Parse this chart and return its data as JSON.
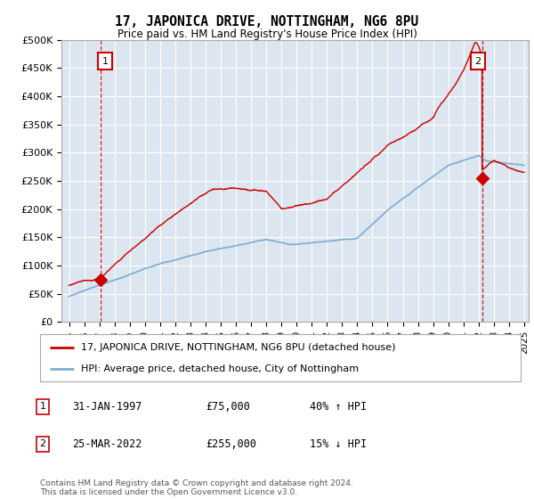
{
  "title": "17, JAPONICA DRIVE, NOTTINGHAM, NG6 8PU",
  "subtitle": "Price paid vs. HM Land Registry's House Price Index (HPI)",
  "bg_color": "#dce6f0",
  "plot_bg_color": "#dce6f0",
  "red_line_label": "17, JAPONICA DRIVE, NOTTINGHAM, NG6 8PU (detached house)",
  "blue_line_label": "HPI: Average price, detached house, City of Nottingham",
  "annotation1_date": "31-JAN-1997",
  "annotation1_price": "£75,000",
  "annotation1_hpi": "40% ↑ HPI",
  "annotation2_date": "25-MAR-2022",
  "annotation2_price": "£255,000",
  "annotation2_hpi": "15% ↓ HPI",
  "footer": "Contains HM Land Registry data © Crown copyright and database right 2024.\nThis data is licensed under the Open Government Licence v3.0.",
  "ylim": [
    0,
    500000
  ],
  "yticks": [
    0,
    50000,
    100000,
    150000,
    200000,
    250000,
    300000,
    350000,
    400000,
    450000,
    500000
  ],
  "ytick_labels": [
    "£0",
    "£50K",
    "£100K",
    "£150K",
    "£200K",
    "£250K",
    "£300K",
    "£350K",
    "£400K",
    "£450K",
    "£500K"
  ],
  "red_color": "#cc0000",
  "blue_color": "#7aadd4",
  "marker1_x": 1997.08,
  "marker1_y": 75000,
  "marker2_x": 2022.23,
  "marker2_y": 255000,
  "xlim_left": 1995.0,
  "xlim_right": 2025.0
}
